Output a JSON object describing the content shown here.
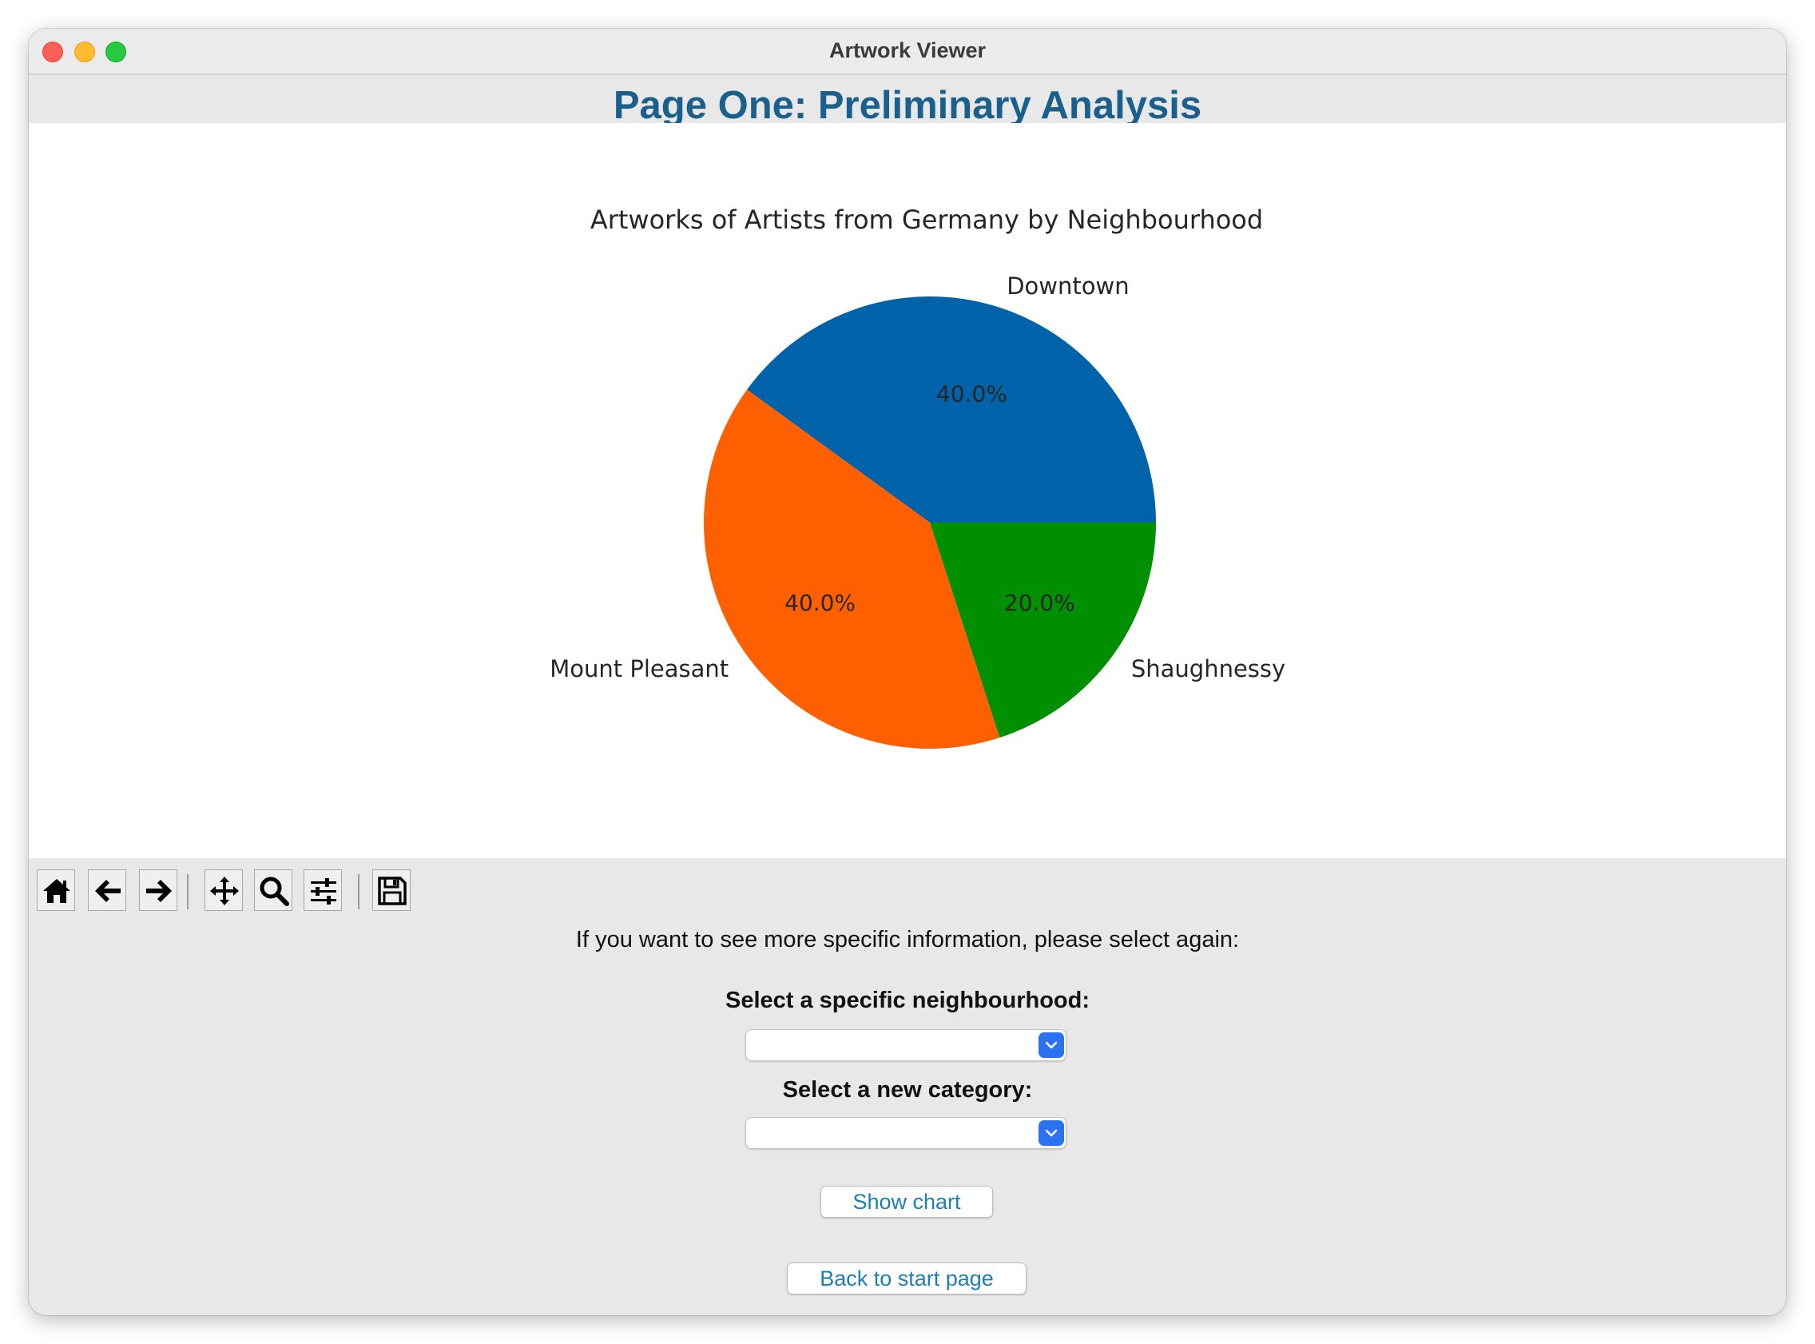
{
  "window": {
    "title": "Artwork Viewer"
  },
  "page": {
    "heading": "Page One: Preliminary Analysis"
  },
  "chart_data": {
    "type": "pie",
    "title": "Artworks of Artists from Germany by Neighbourhood",
    "categories": [
      "Downtown",
      "Mount Pleasant",
      "Shaughnessy"
    ],
    "values": [
      40.0,
      40.0,
      20.0
    ],
    "value_labels": [
      "40.0%",
      "40.0%",
      "20.0%"
    ],
    "colors": [
      "#0063a9",
      "#fe6000",
      "#008f00"
    ],
    "start_angle_deg": 0,
    "direction": "counterclockwise"
  },
  "toolbar": {
    "buttons": [
      {
        "name": "home-icon",
        "tooltip": "Home"
      },
      {
        "name": "back-arrow-icon",
        "tooltip": "Back"
      },
      {
        "name": "forward-arrow-icon",
        "tooltip": "Forward"
      },
      {
        "name": "pan-icon",
        "tooltip": "Pan"
      },
      {
        "name": "zoom-icon",
        "tooltip": "Zoom"
      },
      {
        "name": "configure-subplots-icon",
        "tooltip": "Configure"
      },
      {
        "name": "save-icon",
        "tooltip": "Save"
      }
    ]
  },
  "form": {
    "info_text": "If you want to see more specific information, please select again:",
    "neighbourhood_label": "Select a specific neighbourhood:",
    "neighbourhood_value": "",
    "category_label": "Select a new category:",
    "category_value": "",
    "show_chart_label": "Show chart",
    "back_label": "Back to start page"
  },
  "colors": {
    "heading": "#1b5f8c",
    "button_text": "#1a7fb7",
    "select_accent": "#2a72f2"
  }
}
